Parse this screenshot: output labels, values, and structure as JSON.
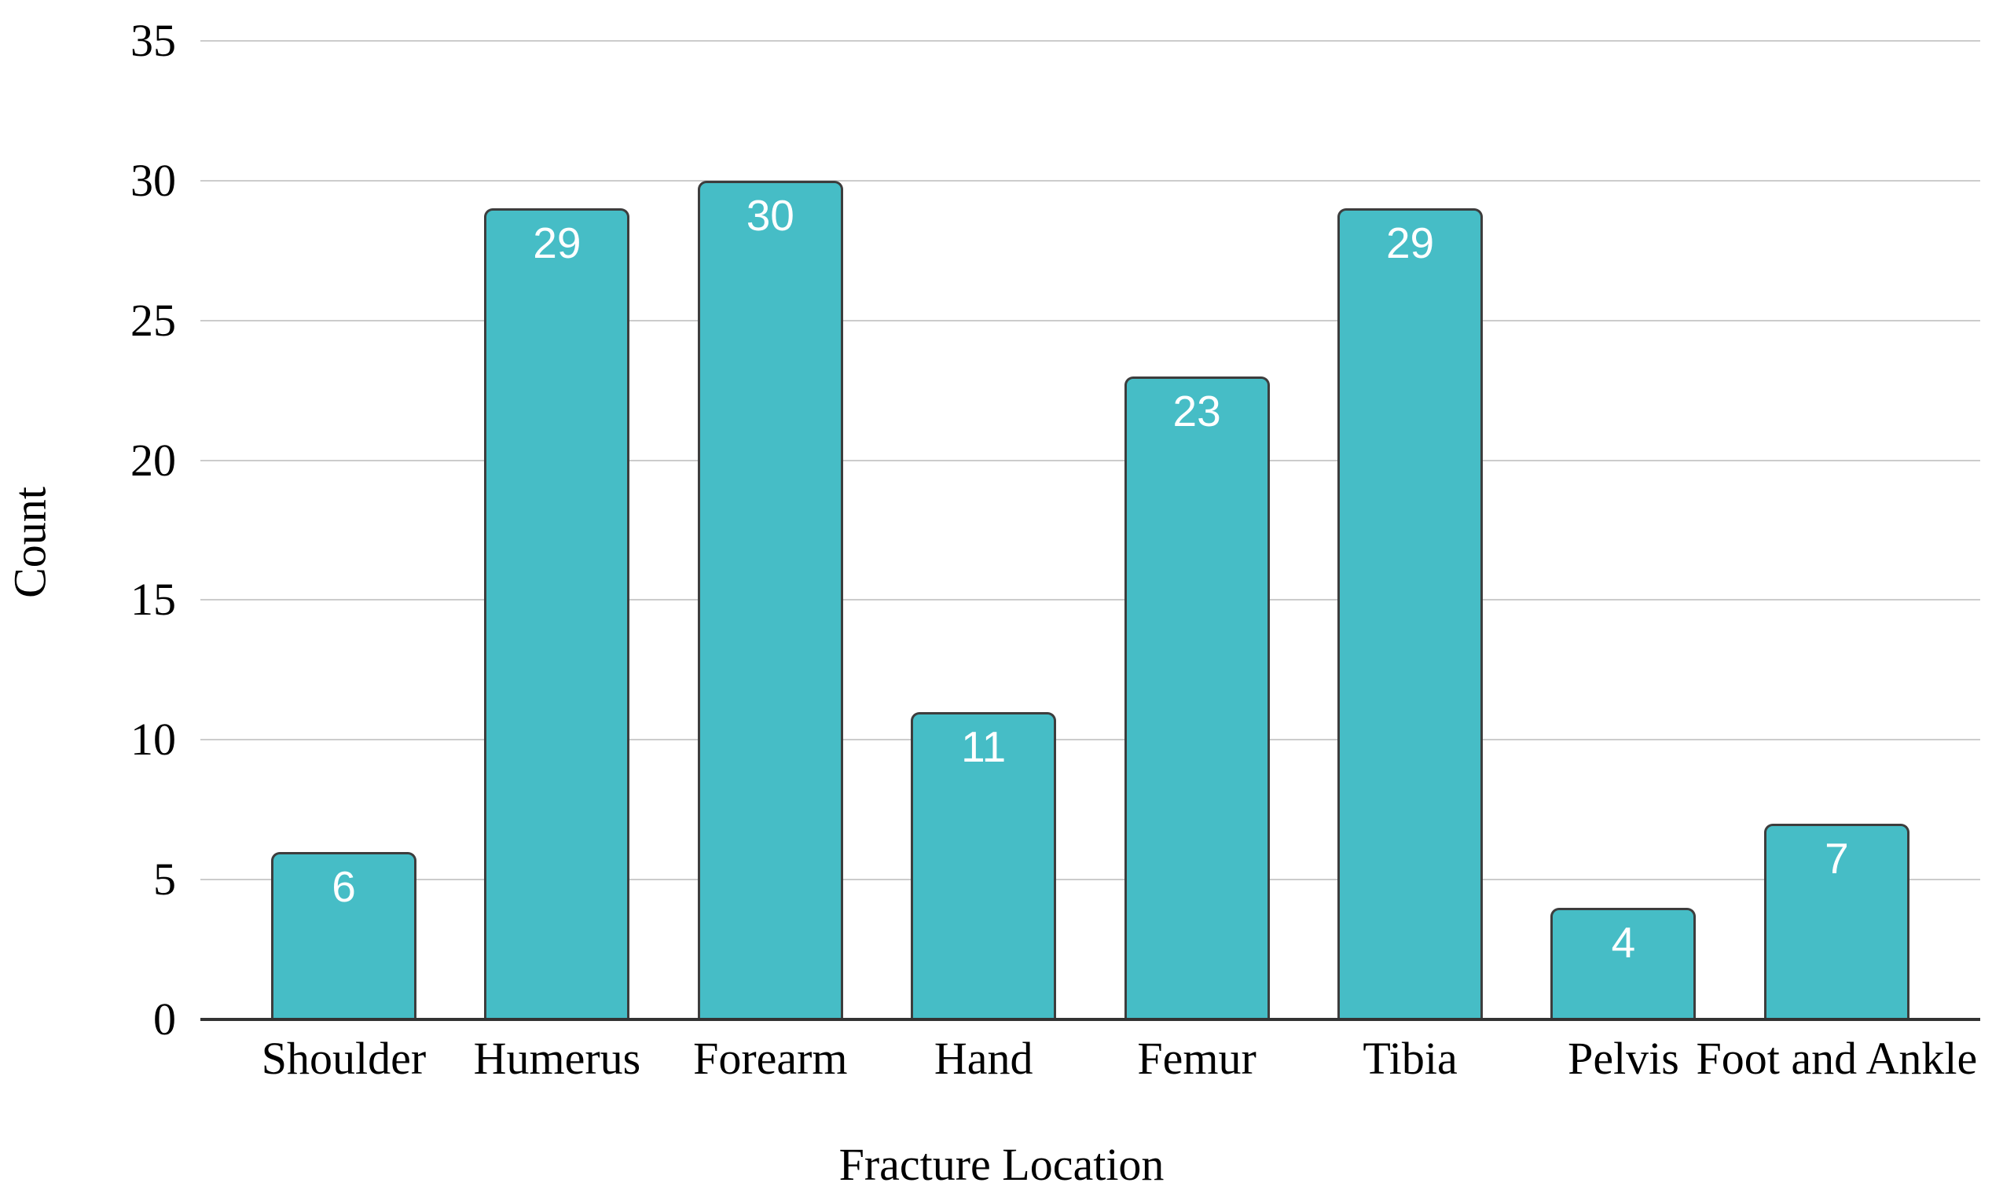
{
  "chart_data": {
    "type": "bar",
    "categories": [
      "Shoulder",
      "Humerus",
      "Forearm",
      "Hand",
      "Femur",
      "Tibia",
      "Pelvis",
      "Foot and Ankle"
    ],
    "values": [
      6,
      29,
      30,
      11,
      23,
      29,
      4,
      7
    ],
    "title": "",
    "xlabel": "Fracture Location",
    "ylabel": "Count",
    "ylim": [
      0,
      35
    ],
    "yticks": [
      0,
      5,
      10,
      15,
      20,
      25,
      30,
      35
    ],
    "grid": true,
    "legend": "none",
    "value_labels_shown": true,
    "colors": {
      "bar_fill": "#46bdc6",
      "bar_border": "#3d3d3d",
      "value_label_text": "#ffffff",
      "gridline": "#cccccc",
      "axis_line": "#333333",
      "axis_text": "#000000",
      "background": "#ffffff"
    }
  }
}
